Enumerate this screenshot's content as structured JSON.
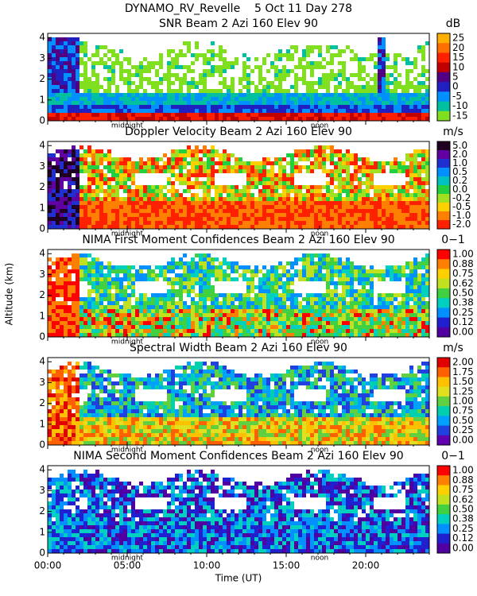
{
  "chart_data": {
    "type": "heatmap-panels",
    "title": "DYNAMO_RV_Revelle    5 Oct 11 Day 278",
    "y_axis_label": "Altitude (km)",
    "x_axis_label": "Time (UT)",
    "xlim": [
      0,
      24
    ],
    "xticks": [
      {
        "value": 0,
        "label": "00:00"
      },
      {
        "value": 5,
        "label": "05:00"
      },
      {
        "value": 10,
        "label": "10:00"
      },
      {
        "value": 15,
        "label": "15:00"
      },
      {
        "value": 20,
        "label": "20:00"
      }
    ],
    "markers": [
      {
        "value": 5,
        "label": "midnight"
      },
      {
        "value": 17.1,
        "label": "noon"
      }
    ],
    "ylim": [
      0,
      4.2
    ],
    "yticks": [
      0,
      1,
      2,
      3,
      4
    ],
    "panels": [
      {
        "title": "SNR Beam 2 Azi 160 Elev 90",
        "unit": "dB",
        "colorbar_ticks": [
          25,
          20,
          15,
          10,
          5,
          0,
          -5,
          -10,
          -15
        ],
        "colors": [
          "#ffb000",
          "#ff7000",
          "#ff2000",
          "#c00000",
          "#500080",
          "#2020c0",
          "#0090ff",
          "#00c0a0",
          "#80e020"
        ]
      },
      {
        "title": "Doppler Velocity Beam 2 Azi 160 Elev 90",
        "unit": "m/s",
        "colorbar_ticks": [
          {
            "value": 5,
            "label": "5.0"
          },
          {
            "value": 2,
            "label": "2.0"
          },
          {
            "value": 1,
            "label": "1.0"
          },
          0.5,
          0.2,
          {
            "value": 0,
            "label": "0.0"
          },
          -0.2,
          -0.5,
          {
            "value": -1,
            "label": "-1.0"
          },
          {
            "value": -2,
            "label": "-2.0"
          }
        ],
        "colors": [
          "#200020",
          "#6000a0",
          "#2030d0",
          "#0090ff",
          "#00c0c0",
          "#20d040",
          "#a0e020",
          "#ffd000",
          "#ff8000",
          "#ff2000"
        ]
      },
      {
        "title": "NIMA First Moment Confidences Beam 2 Azi 160 Elev 90",
        "unit": "0−1",
        "colorbar_ticks": [
          {
            "value": 1,
            "label": "1.00"
          },
          0.88,
          0.75,
          0.62,
          {
            "value": 0.5,
            "label": "0.50"
          },
          0.38,
          0.25,
          0.12,
          {
            "value": 0,
            "label": "0.00"
          }
        ],
        "colors": [
          "#ff0000",
          "#ff8000",
          "#ffd000",
          "#c0e020",
          "#40d040",
          "#00d0c0",
          "#0090ff",
          "#2020d0",
          "#5000a0"
        ]
      },
      {
        "title": "Spectral Width Beam 2 Azi 160 Elev 90",
        "unit": "m/s",
        "colorbar_ticks": [
          {
            "value": 2,
            "label": "2.00"
          },
          1.75,
          {
            "value": 1.5,
            "label": "1.50"
          },
          1.25,
          {
            "value": 1,
            "label": "1.00"
          },
          0.75,
          {
            "value": 0.5,
            "label": "0.50"
          },
          0.25,
          {
            "value": 0,
            "label": "0.00"
          }
        ],
        "colors": [
          "#e00000",
          "#ff6000",
          "#ffc000",
          "#e0e020",
          "#60d040",
          "#00d0b0",
          "#00a0ff",
          "#2040e0",
          "#6000b0"
        ]
      },
      {
        "title": "NIMA Second Moment Confidences Beam 2 Azi 160 Elev 90",
        "unit": "0−1",
        "colorbar_ticks": [
          {
            "value": 1,
            "label": "1.00"
          },
          0.88,
          0.75,
          0.62,
          {
            "value": 0.5,
            "label": "0.50"
          },
          0.38,
          0.25,
          0.12,
          {
            "value": 0,
            "label": "0.00"
          }
        ],
        "colors": [
          "#ff0000",
          "#ff8000",
          "#ffd000",
          "#c0e020",
          "#40d040",
          "#00d0c0",
          "#0090ff",
          "#2020d0",
          "#5000a0"
        ]
      }
    ]
  }
}
